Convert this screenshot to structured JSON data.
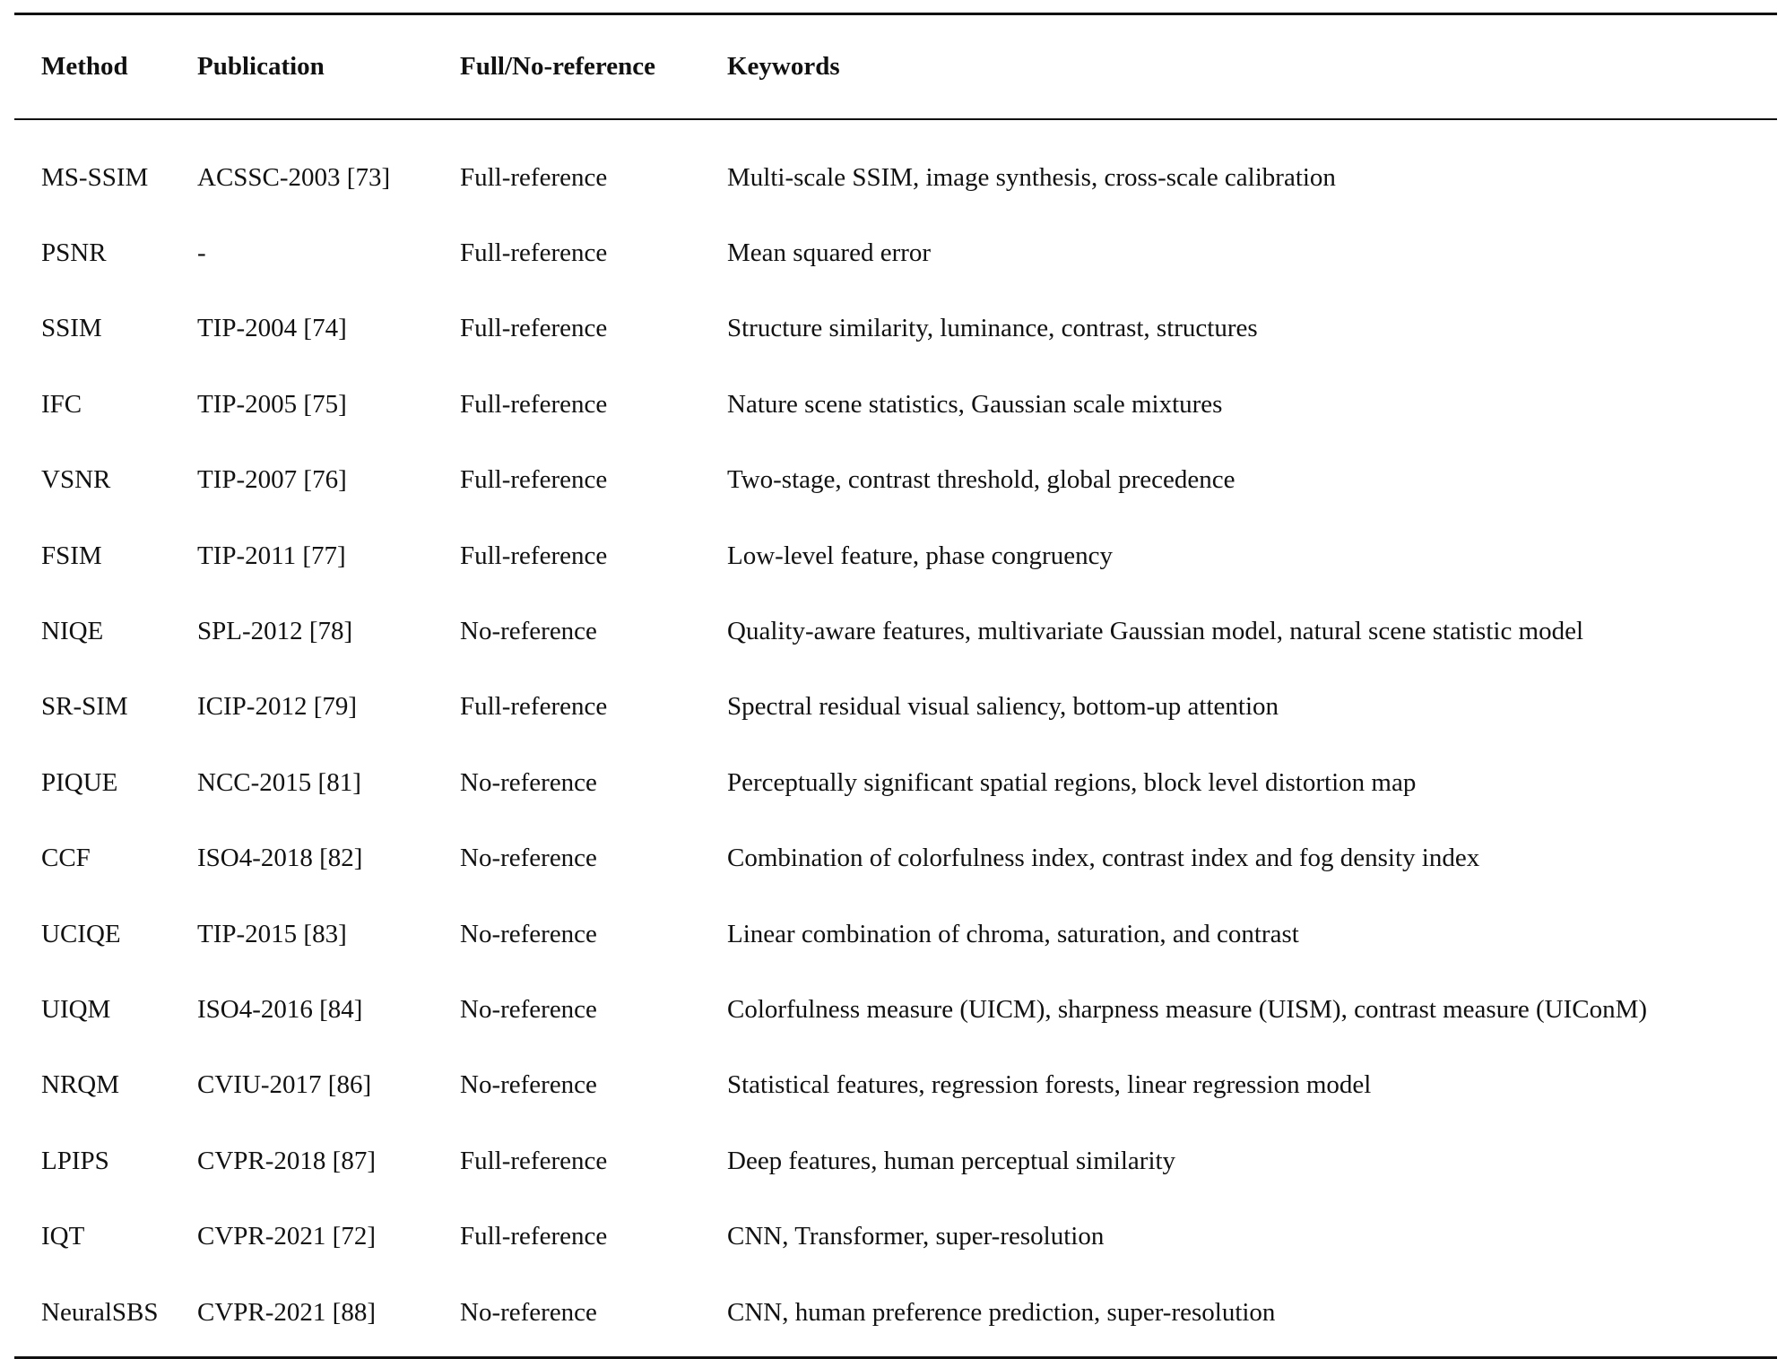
{
  "table": {
    "headers": {
      "method": "Method",
      "publication": "Publication",
      "reference": "Full/No-reference",
      "keywords": "Keywords"
    },
    "rows": [
      {
        "method": "MS-SSIM",
        "publication": "ACSSC-2003 [73]",
        "reference": "Full-reference",
        "keywords": "Multi-scale SSIM, image synthesis, cross-scale calibration"
      },
      {
        "method": "PSNR",
        "publication": "-",
        "reference": "Full-reference",
        "keywords": "Mean squared error"
      },
      {
        "method": "SSIM",
        "publication": "TIP-2004 [74]",
        "reference": "Full-reference",
        "keywords": "Structure similarity, luminance, contrast, structures"
      },
      {
        "method": "IFC",
        "publication": "TIP-2005 [75]",
        "reference": "Full-reference",
        "keywords": "Nature scene statistics, Gaussian scale mixtures"
      },
      {
        "method": "VSNR",
        "publication": "TIP-2007 [76]",
        "reference": "Full-reference",
        "keywords": "Two-stage, contrast threshold, global precedence"
      },
      {
        "method": "FSIM",
        "publication": "TIP-2011 [77]",
        "reference": "Full-reference",
        "keywords": "Low-level feature, phase congruency"
      },
      {
        "method": "NIQE",
        "publication": "SPL-2012 [78]",
        "reference": "No-reference",
        "keywords": "Quality-aware features, multivariate Gaussian model, natural scene statistic model"
      },
      {
        "method": "SR-SIM",
        "publication": "ICIP-2012 [79]",
        "reference": "Full-reference",
        "keywords": "Spectral residual visual saliency, bottom-up attention"
      },
      {
        "method": "PIQUE",
        "publication": "NCC-2015 [81]",
        "reference": "No-reference",
        "keywords": "Perceptually significant spatial regions, block level distortion map"
      },
      {
        "method": "CCF",
        "publication": "ISO4-2018 [82]",
        "reference": "No-reference",
        "keywords": "Combination of colorfulness index, contrast index and fog density index"
      },
      {
        "method": "UCIQE",
        "publication": "TIP-2015 [83]",
        "reference": "No-reference",
        "keywords": "Linear combination of chroma, saturation, and contrast"
      },
      {
        "method": "UIQM",
        "publication": "ISO4-2016 [84]",
        "reference": "No-reference",
        "keywords": "Colorfulness measure (UICM), sharpness measure (UISM), contrast measure (UIConM)"
      },
      {
        "method": "NRQM",
        "publication": "CVIU-2017 [86]",
        "reference": "No-reference",
        "keywords": "Statistical features, regression forests, linear regression model"
      },
      {
        "method": "LPIPS",
        "publication": "CVPR-2018 [87]",
        "reference": "Full-reference",
        "keywords": "Deep features, human perceptual similarity"
      },
      {
        "method": "IQT",
        "publication": "CVPR-2021 [72]",
        "reference": "Full-reference",
        "keywords": "CNN, Transformer, super-resolution"
      },
      {
        "method": "NeuralSBS",
        "publication": "CVPR-2021 [88]",
        "reference": "No-reference",
        "keywords": "CNN, human preference prediction, super-resolution"
      }
    ]
  }
}
